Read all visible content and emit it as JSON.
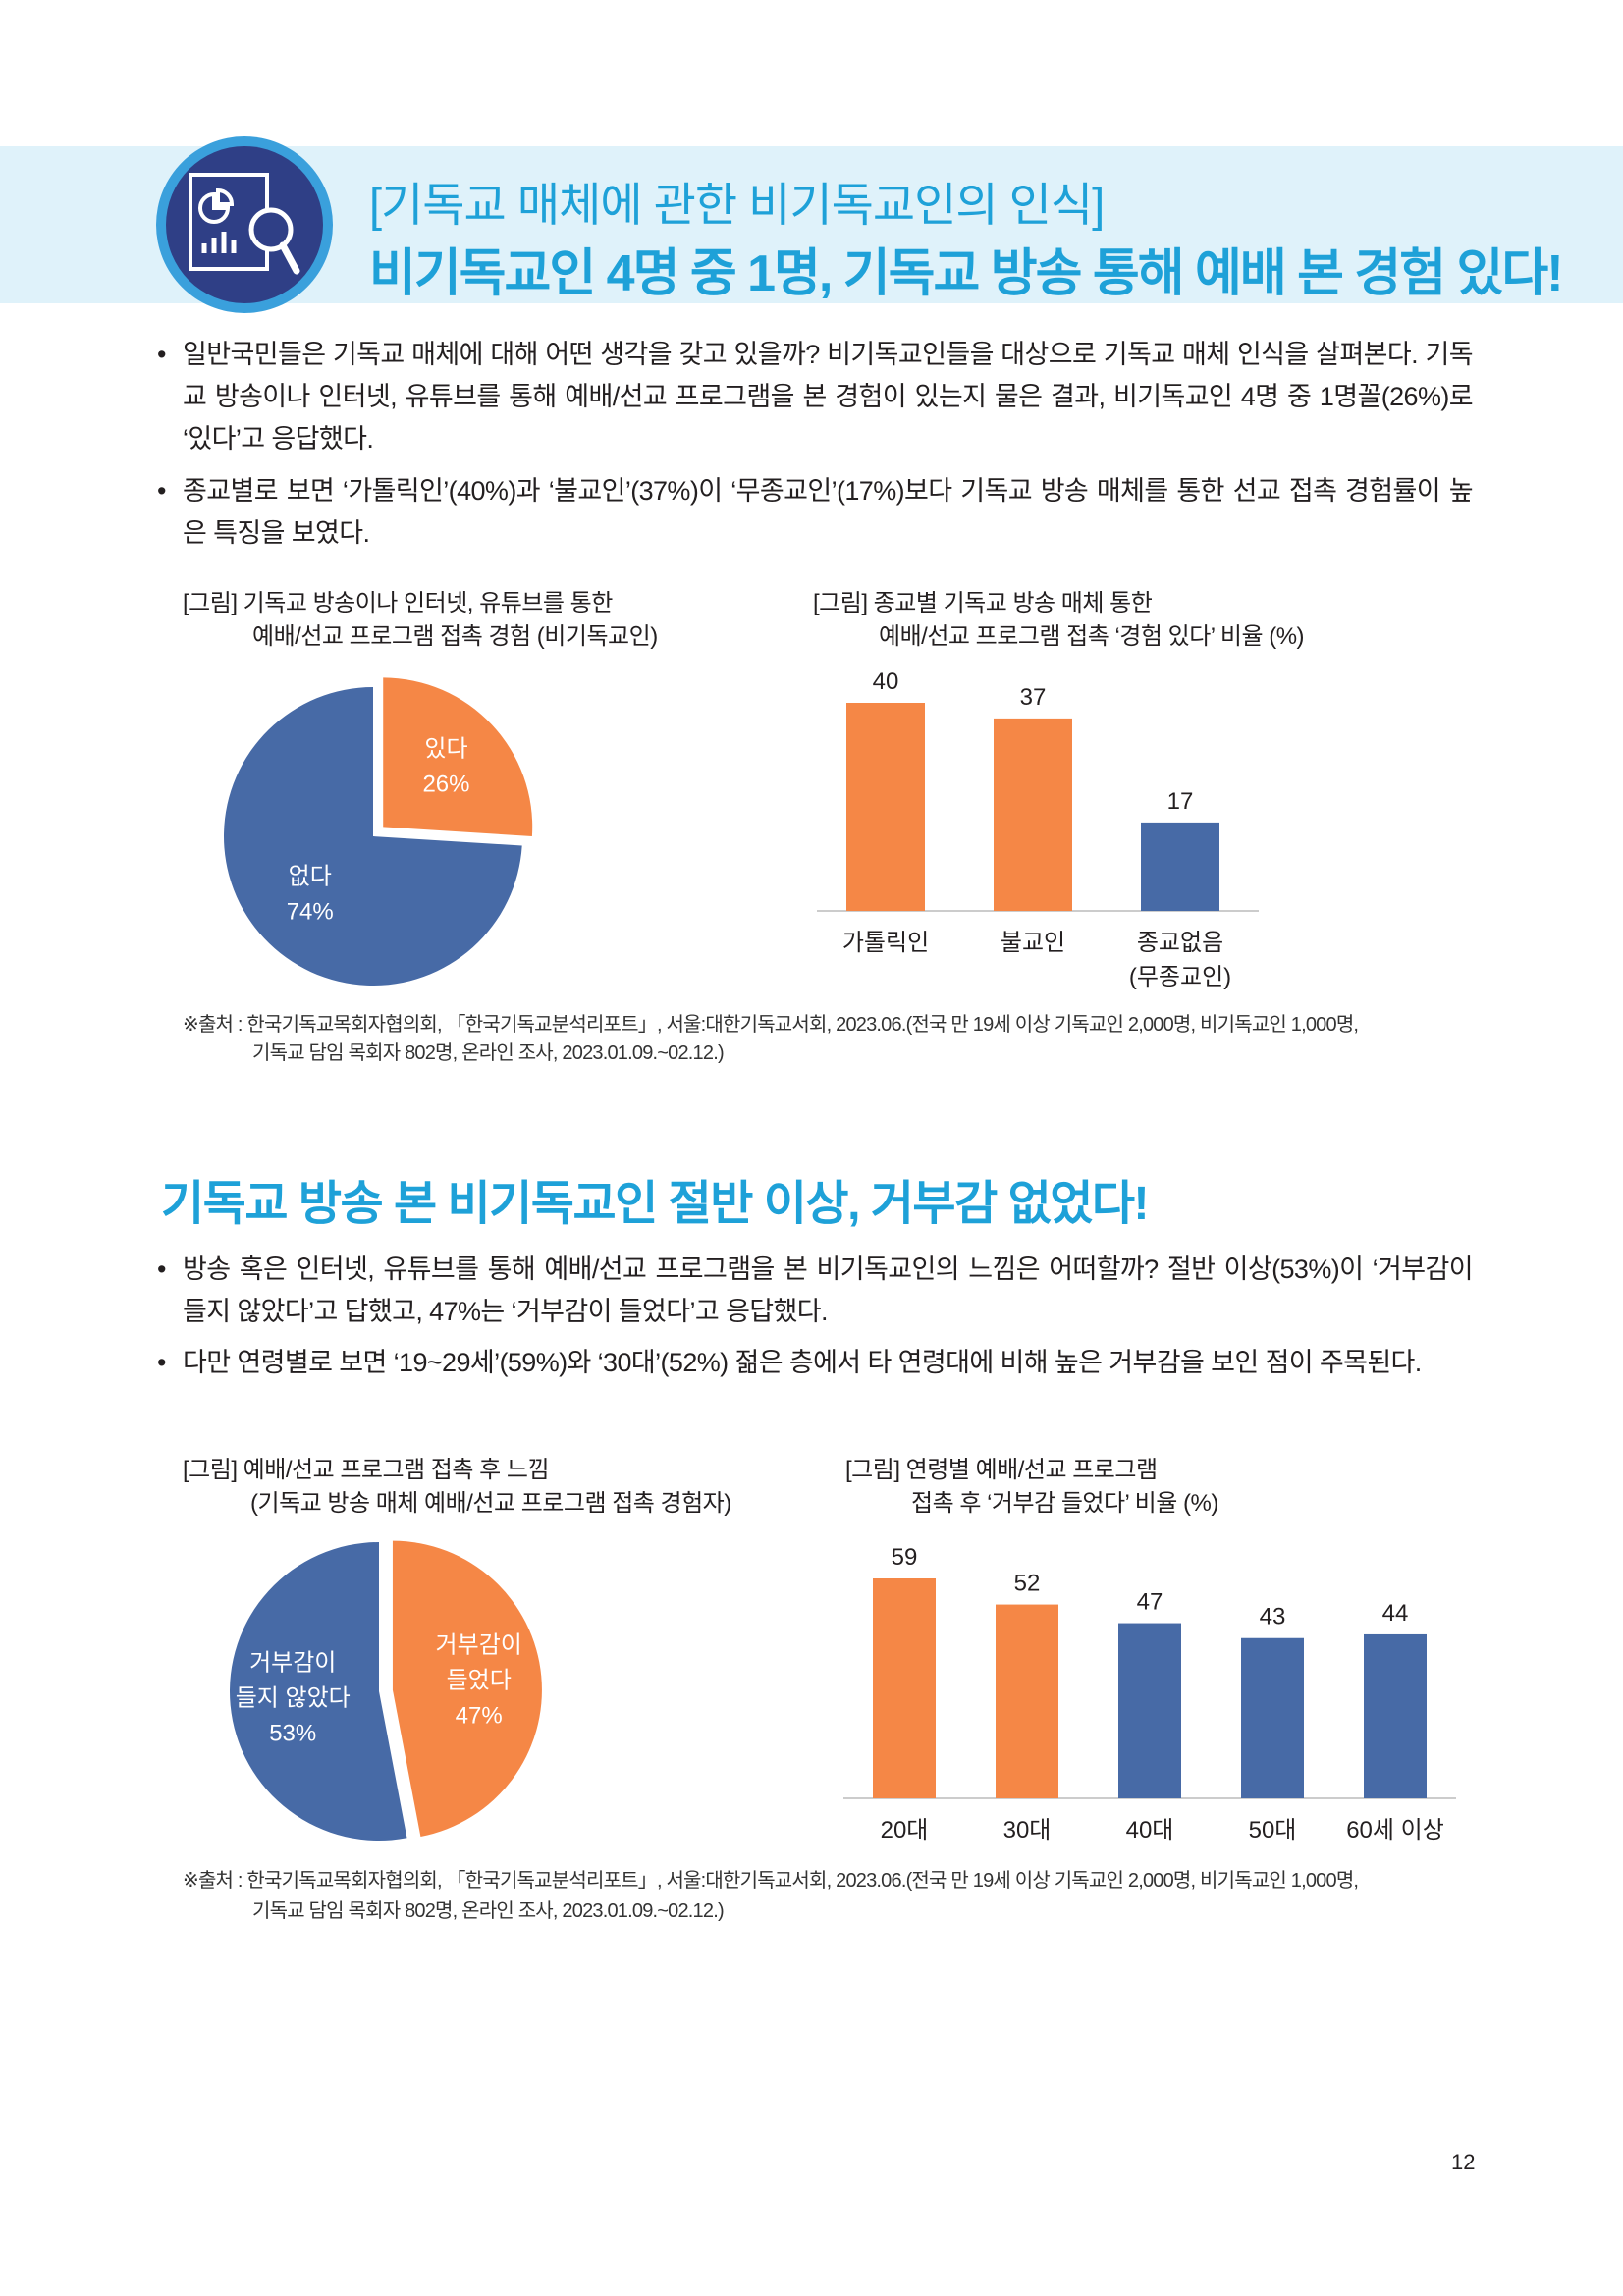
{
  "header": {
    "title_line1": "[기독교 매체에 관한 비기독교인의 인식]",
    "title_line2": "비기독교인 4명 중 1명, 기독교 방송 통해 예배 본 경험 있다!",
    "icon": "chart-magnifier-icon"
  },
  "section1": {
    "bullets": [
      "일반국민들은 기독교 매체에 대해 어떤 생각을 갖고 있을까? 비기독교인들을 대상으로 기독교 매체 인식을 살펴본다. 기독교 방송이나 인터넷, 유튜브를 통해 예배/선교 프로그램을 본 경험이 있는지 물은 결과, 비기독교인 4명 중 1명꼴(26%)로 ‘있다’고 응답했다.",
      "종교별로 보면 ‘가톨릭인’(40%)과 ‘불교인’(37%)이 ‘무종교인’(17%)보다 기독교 방송 매체를 통한 선교 접촉 경험률이 높은 특징을 보였다."
    ],
    "fig_left": {
      "line1": "[그림] 기독교 방송이나 인터넷, 유튜브를 통한",
      "line2": "예배/선교 프로그램 접촉 경험 (비기독교인)"
    },
    "fig_right": {
      "line1": "[그림] 종교별 기독교 방송 매체 통한",
      "line2": "예배/선교 프로그램 접촉 ‘경험 있다’ 비율 (%)"
    },
    "source": {
      "line1": "※출처 : 한국기독교목회자협의회, 「한국기독교분석리포트」, 서울:대한기독교서회, 2023.06.(전국 만 19세 이상 기독교인 2,000명, 비기독교인 1,000명,",
      "line2": "기독교 담임 목회자 802명, 온라인 조사, 2023.01.09.~02.12.)"
    }
  },
  "section2": {
    "title": "기독교 방송 본 비기독교인 절반 이상, 거부감 없었다!",
    "bullets": [
      "방송 혹은 인터넷, 유튜브를 통해 예배/선교 프로그램을 본 비기독교인의 느낌은 어떠할까? 절반 이상(53%)이 ‘거부감이 들지 않았다’고 답했고, 47%는 ‘거부감이 들었다’고 응답했다.",
      "다만 연령별로 보면 ‘19~29세’(59%)와 ‘30대’(52%) 젊은 층에서 타 연령대에 비해 높은 거부감을 보인 점이 주목된다."
    ],
    "fig_left": {
      "line1": "[그림] 예배/선교 프로그램 접촉 후 느낌",
      "line2": "(기독교 방송 매체 예배/선교 프로그램 접촉 경험자)"
    },
    "fig_right": {
      "line1": "[그림] 연령별 예배/선교 프로그램",
      "line2": "접촉 후 ‘거부감 들었다’ 비율 (%)"
    },
    "source": {
      "line1": "※출처 : 한국기독교목회자협의회, 「한국기독교분석리포트」, 서울:대한기독교서회, 2023.06.(전국 만 19세 이상 기독교인 2,000명, 비기독교인 1,000명,",
      "line2": "기독교 담임 목회자 802명, 온라인 조사, 2023.01.09.~02.12.)"
    }
  },
  "page_number": "12",
  "colors": {
    "accent": "#1ea1d8",
    "orange": "#f58746",
    "blue": "#476aa6",
    "band": "#dff2fa",
    "icon_bg": "#2f3f86"
  },
  "chart_data": [
    {
      "type": "pie",
      "slices": [
        {
          "label": "있다",
          "value": 26,
          "value_label": "26%",
          "color": "#f58746",
          "exploded": true
        },
        {
          "label": "없다",
          "value": 74,
          "value_label": "74%",
          "color": "#476aa6"
        }
      ]
    },
    {
      "type": "bar",
      "categories": [
        [
          "가톨릭인"
        ],
        [
          "불교인"
        ],
        [
          "종교없음",
          "(무종교인)"
        ]
      ],
      "values": [
        40,
        37,
        17
      ],
      "colors": [
        "#f58746",
        "#f58746",
        "#476aa6"
      ],
      "ylim": [
        0,
        40
      ]
    },
    {
      "type": "pie",
      "slices": [
        {
          "label": "거부감이\n들었다",
          "value": 47,
          "value_label": "47%",
          "color": "#f58746",
          "exploded": true
        },
        {
          "label": "거부감이\n들지 않았다",
          "value": 53,
          "value_label": "53%",
          "color": "#476aa6"
        }
      ]
    },
    {
      "type": "bar",
      "categories": [
        [
          "20대"
        ],
        [
          "30대"
        ],
        [
          "40대"
        ],
        [
          "50대"
        ],
        [
          "60세 이상"
        ]
      ],
      "values": [
        59,
        52,
        47,
        43,
        44
      ],
      "colors": [
        "#f58746",
        "#f58746",
        "#476aa6",
        "#476aa6",
        "#476aa6"
      ],
      "ylim": [
        0,
        59
      ]
    }
  ]
}
